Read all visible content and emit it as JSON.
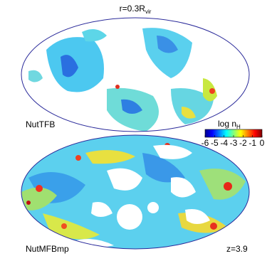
{
  "title": {
    "main": "r=0.3R",
    "sub": "vir"
  },
  "panels": [
    {
      "label": "NutTFB"
    },
    {
      "label": "NutMFBmp",
      "redshift": "z=3.9"
    }
  ],
  "colorbar": {
    "label": "log n",
    "sub": "H",
    "range": [
      -6,
      0
    ],
    "ticks": [
      -6,
      -5,
      -4,
      -3,
      -2,
      -1,
      0
    ]
  }
}
